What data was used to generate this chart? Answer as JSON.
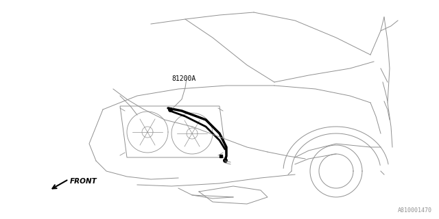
{
  "bg_color": "#ffffff",
  "line_color": "#909090",
  "thick_line_color": "#000000",
  "label_part": "81200A",
  "label_front": "FRONT",
  "diagram_number": "A810001470",
  "fig_width": 6.4,
  "fig_height": 3.2,
  "dpi": 100,
  "lw": 0.7
}
